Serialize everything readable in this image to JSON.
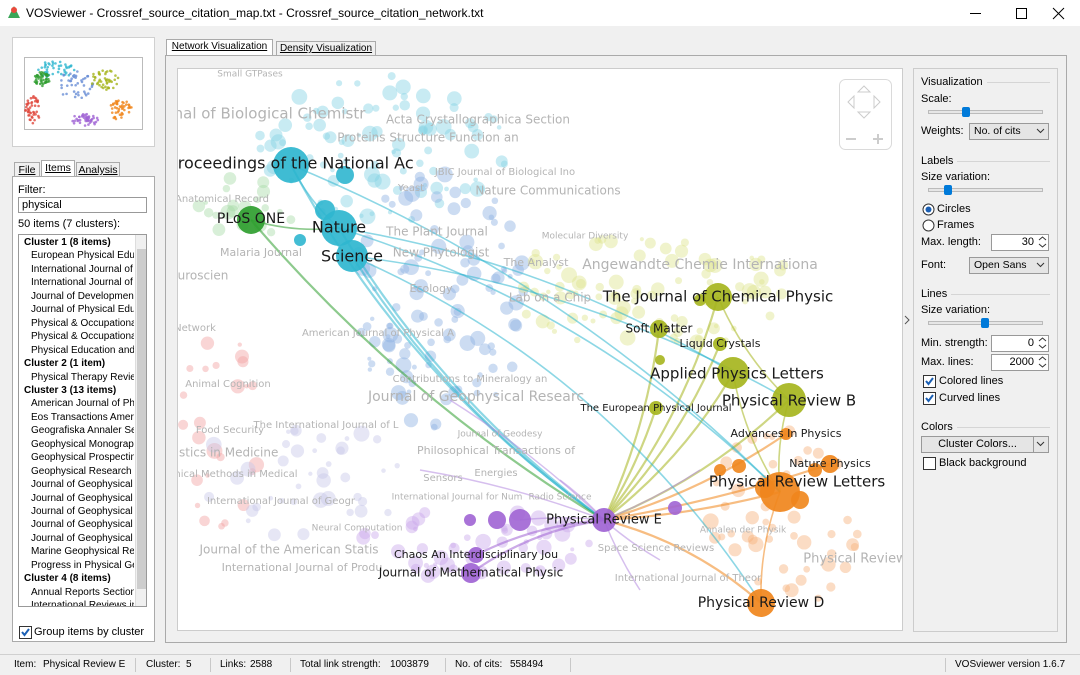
{
  "window": {
    "title": "VOSviewer - Crossref_source_citation_map.txt - Crossref_source_citation_network.txt"
  },
  "sidebar": {
    "tabs": [
      "File",
      "Items",
      "Analysis"
    ],
    "active_tab": 1,
    "filter_label": "Filter:",
    "filter": "physical",
    "summary": "50 items (7 clusters):",
    "items": [
      {
        "text": "Cluster 1 (8 items)",
        "header": true
      },
      {
        "text": "European Physical Educa"
      },
      {
        "text": "International Journal of"
      },
      {
        "text": "International Journal of"
      },
      {
        "text": "Journal of Development"
      },
      {
        "text": "Journal of Physical Educ"
      },
      {
        "text": "Physical & Occupational"
      },
      {
        "text": "Physical & Occupational"
      },
      {
        "text": "Physical Education and S"
      },
      {
        "text": "Cluster 2 (1 item)",
        "header": true
      },
      {
        "text": "Physical Therapy Review"
      },
      {
        "text": "Cluster 3 (13 items)",
        "header": true
      },
      {
        "text": "American Journal of Phy"
      },
      {
        "text": "Eos Transactions Americ"
      },
      {
        "text": "Geografiska Annaler Ser"
      },
      {
        "text": "Geophysical Monograph"
      },
      {
        "text": "Geophysical Prospecting"
      },
      {
        "text": "Geophysical Research Le"
      },
      {
        "text": "Journal of Geophysical R"
      },
      {
        "text": "Journal of Geophysical R"
      },
      {
        "text": "Journal of Geophysical R"
      },
      {
        "text": "Journal of Geophysical R"
      },
      {
        "text": "Journal of Geophysical R"
      },
      {
        "text": "Marine Geophysical Res"
      },
      {
        "text": "Progress in Physical Geo"
      },
      {
        "text": "Cluster 4 (8 items)",
        "header": true
      },
      {
        "text": "Annual Reports Section"
      },
      {
        "text": "International Reviews in"
      }
    ],
    "group_by_cluster": {
      "label": "Group items by cluster",
      "checked": true
    }
  },
  "view_tabs": [
    "Network Visualization",
    "Density Visualization"
  ],
  "active_view": 0,
  "network": {
    "cluster_colors": [
      "#2fb6cf",
      "#2f9e2f",
      "#a6b51e",
      "#f0861c",
      "#a064d4"
    ],
    "nodes": [
      {
        "label": "Proceedings of the National Ac",
        "cluster": 0
      },
      {
        "label": "Nature",
        "cluster": 0
      },
      {
        "label": "Science",
        "cluster": 0
      },
      {
        "label": "PLoS ONE",
        "cluster": 1
      },
      {
        "label": "The Journal of Chemical Physic",
        "cluster": 2
      },
      {
        "label": "Soft Matter",
        "cluster": 2
      },
      {
        "label": "Liquid Crystals",
        "cluster": 2
      },
      {
        "label": "Applied Physics Letters",
        "cluster": 2
      },
      {
        "label": "Physical Review B",
        "cluster": 2
      },
      {
        "label": "The European Physical Journal",
        "cluster": 2
      },
      {
        "label": "Advances In Physics",
        "cluster": 3
      },
      {
        "label": "Nature Physics",
        "cluster": 3
      },
      {
        "label": "Physical Review Letters",
        "cluster": 3
      },
      {
        "label": "Physical Review E",
        "cluster": 4
      },
      {
        "label": "Chaos An Interdisciplinary Jou",
        "cluster": 4
      },
      {
        "label": "Journal of Mathematical Physic",
        "cluster": 4
      },
      {
        "label": "Physical Review D",
        "cluster": 3
      }
    ],
    "faint_labels": [
      "Small GTPases",
      "Journal of Biological Chemistr",
      "Acta Crystallographica Section",
      "Proteins Structure Function an",
      "JBIC Journal of Biological Ino",
      "Nature Communications",
      "Yeast",
      "Anatomical Record",
      "The Plant Journal",
      "New Phytologist",
      "Malaria Journal",
      "Molecular Diversity",
      "The Analyst",
      "Angewandte Chemie Internationa",
      "Lab on a Chip",
      "Ecology",
      "uroscien",
      "Network",
      "American Journal of Physical A",
      "Animal Cognition",
      "Contributions to Mineralogy an",
      "Journal of Geophysical Researc",
      "The International Journal of L",
      "Journal of Geodesy",
      "Food Security",
      "Philosophical Transactions of",
      "istics in Medicine",
      "Energies",
      "Sensors",
      "thical Methods in Medical",
      "International Journal for Num",
      "Radio Science",
      "International Journal of Geogr",
      "Neural Computation",
      "Journal of the American Statis",
      "Space Science Reviews",
      "International Journal of Produ",
      "International Journal of Theor",
      "Annalen der Physik",
      "Physical Review"
    ]
  },
  "options": {
    "visualization": {
      "title": "Visualization",
      "scale_label": "Scale:",
      "weights_label": "Weights:",
      "weights": "No. of cits"
    },
    "labels": {
      "title": "Labels",
      "size_variation_label": "Size variation:",
      "circles": "Circles",
      "frames": "Frames",
      "circles_selected": true,
      "max_length_label": "Max. length:",
      "max_length": 30,
      "font_label": "Font:",
      "font": "Open Sans"
    },
    "lines": {
      "title": "Lines",
      "size_variation_label": "Size variation:",
      "min_strength_label": "Min. strength:",
      "min_strength": 0,
      "max_lines_label": "Max. lines:",
      "max_lines": 2000,
      "colored_lines": {
        "label": "Colored lines",
        "checked": true
      },
      "curved_lines": {
        "label": "Curved lines",
        "checked": true
      }
    },
    "colors": {
      "title": "Colors",
      "button": "Cluster Colors...",
      "black_background": {
        "label": "Black background",
        "checked": false
      }
    }
  },
  "status_bar": {
    "fields": [
      {
        "label": "Item:",
        "value": "Physical Review E"
      },
      {
        "label": "Cluster:",
        "value": 5
      },
      {
        "label": "Links:",
        "value": 2588
      },
      {
        "label": "Total link strength:",
        "value": 1003879
      },
      {
        "label": "No. of cits:",
        "value": 558494
      }
    ],
    "version": "VOSviewer version 1.6.7"
  }
}
